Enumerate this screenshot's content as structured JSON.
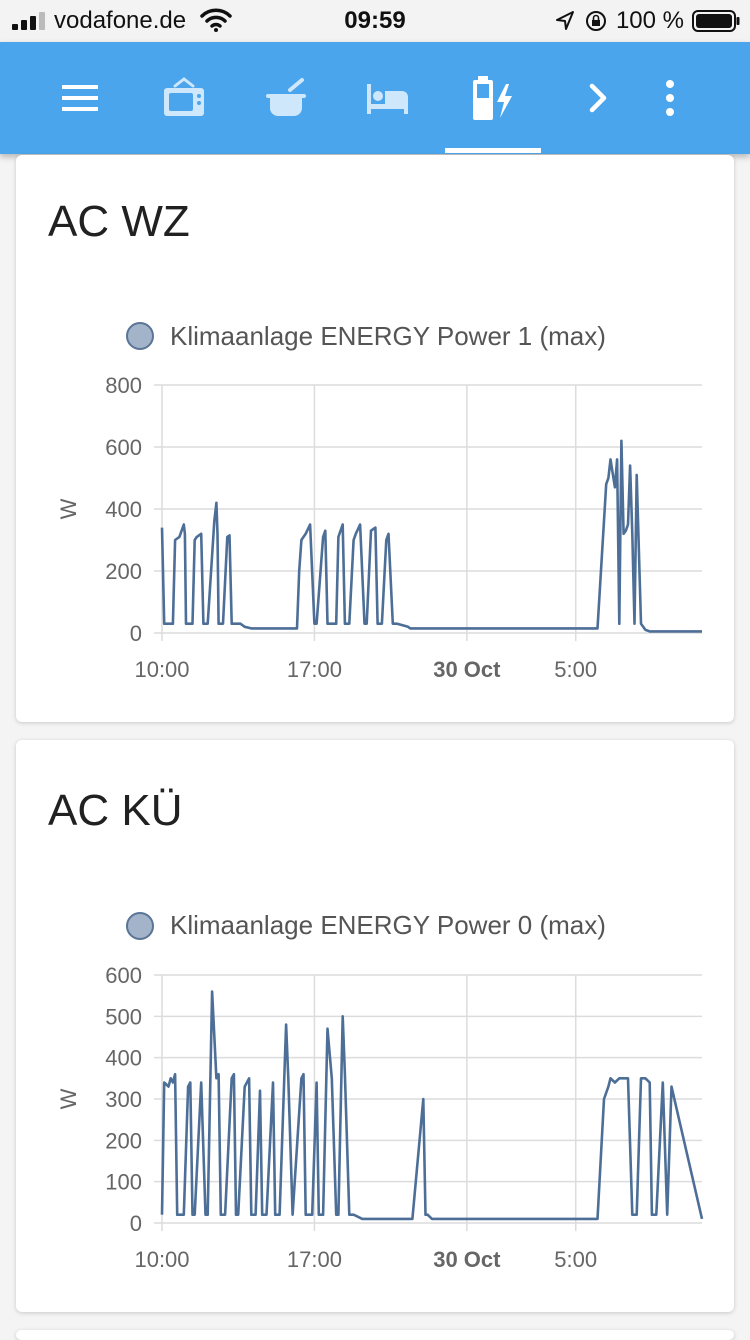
{
  "status_bar": {
    "carrier": "vodafone.de",
    "time": "09:59",
    "battery_percent": "100 %"
  },
  "toolbar": {
    "icons": [
      "menu-icon",
      "tv-icon",
      "pot-icon",
      "bed-icon",
      "battery-charging-icon",
      "chevron-right-icon",
      "more-vert-icon"
    ],
    "active_tab": "battery-charging-icon",
    "background": "#4ba5ec"
  },
  "cards": [
    {
      "title": "AC WZ",
      "legend": "Klimaanlage ENERGY Power 1 (max)"
    },
    {
      "title": "AC KÜ",
      "legend": "Klimaanlage ENERGY Power 0 (max)"
    }
  ],
  "chart_data": [
    {
      "type": "line",
      "title": "AC WZ",
      "ylabel": "W",
      "ylim": [
        0,
        800
      ],
      "yticks": [
        "800",
        "600",
        "400",
        "200",
        "0"
      ],
      "xticks": [
        "10:00",
        "17:00",
        "30 Oct",
        "5:00"
      ],
      "xtick_bold": [
        false,
        false,
        true,
        false
      ],
      "grid": true,
      "legend_position": "top",
      "series": [
        {
          "name": "Klimaanlage ENERGY Power 1 (max)",
          "color": "#4d6f97",
          "x_hours": [
            0,
            0.1,
            0.15,
            0.5,
            0.6,
            0.8,
            1.0,
            1.05,
            1.1,
            1.4,
            1.5,
            1.6,
            1.8,
            1.9,
            2.0,
            2.1,
            2.4,
            2.5,
            2.55,
            2.6,
            2.8,
            3.0,
            3.1,
            3.2,
            3.5,
            3.6,
            3.8,
            4.1,
            4.3,
            6.2,
            6.3,
            6.4,
            6.6,
            6.8,
            7.0,
            7.1,
            7.4,
            7.5,
            7.6,
            8.0,
            8.1,
            8.3,
            8.4,
            8.6,
            8.8,
            8.9,
            9.1,
            9.3,
            9.4,
            9.6,
            9.8,
            9.9,
            10.1,
            10.3,
            10.4,
            10.6,
            10.8,
            11.3,
            11.4,
            11.7,
            11.8,
            12.0,
            12.3,
            12.4,
            14.0,
            20.0,
            20.4,
            20.5,
            20.6,
            20.8,
            20.9,
            21.0,
            21.1,
            21.2,
            21.3,
            21.4,
            21.5,
            21.6,
            21.7,
            21.8,
            22.0,
            22.1,
            22.2,
            22.4,
            22.5,
            22.6,
            22.7,
            23.0,
            23.2,
            24.0,
            24.8
          ],
          "values": [
            340,
            30,
            30,
            30,
            300,
            310,
            350,
            320,
            30,
            30,
            300,
            310,
            320,
            30,
            30,
            30,
            360,
            420,
            320,
            30,
            30,
            310,
            315,
            30,
            30,
            30,
            20,
            15,
            15,
            15,
            200,
            300,
            320,
            350,
            30,
            30,
            310,
            330,
            30,
            30,
            310,
            350,
            30,
            30,
            300,
            320,
            350,
            30,
            30,
            330,
            340,
            30,
            30,
            300,
            320,
            30,
            30,
            20,
            15,
            15,
            15,
            15,
            15,
            15,
            15,
            15,
            480,
            500,
            560,
            470,
            560,
            30,
            620,
            320,
            330,
            350,
            540,
            320,
            30,
            510,
            30,
            20,
            10,
            5,
            5,
            5,
            5,
            5,
            5,
            5,
            5
          ]
        }
      ]
    },
    {
      "type": "line",
      "title": "AC KÜ",
      "ylabel": "W",
      "ylim": [
        0,
        600
      ],
      "yticks": [
        "600",
        "500",
        "400",
        "300",
        "200",
        "100",
        "0"
      ],
      "xticks": [
        "10:00",
        "17:00",
        "30 Oct",
        "5:00"
      ],
      "xtick_bold": [
        false,
        false,
        true,
        false
      ],
      "grid": true,
      "legend_position": "top",
      "series": [
        {
          "name": "Klimaanlage ENERGY Power 0 (max)",
          "color": "#4d6f97",
          "x_hours": [
            0,
            0.1,
            0.3,
            0.4,
            0.5,
            0.6,
            0.7,
            0.8,
            1.0,
            1.2,
            1.3,
            1.4,
            1.5,
            1.8,
            2.0,
            2.1,
            2.3,
            2.5,
            2.6,
            2.7,
            2.9,
            3.2,
            3.3,
            3.4,
            3.5,
            3.8,
            4.0,
            4.1,
            4.3,
            4.5,
            4.6,
            4.8,
            5.1,
            5.2,
            5.4,
            5.7,
            5.8,
            6.0,
            6.4,
            6.5,
            6.6,
            6.9,
            7.1,
            7.2,
            7.4,
            7.6,
            7.8,
            8.0,
            8.1,
            8.3,
            8.4,
            8.6,
            8.8,
            9.0,
            9.2,
            9.3,
            9.4,
            9.5,
            9.7,
            9.8,
            10.0,
            10.3,
            11.0,
            11.5,
            12.0,
            12.1,
            12.2,
            12.4,
            14.0,
            20.0,
            20.3,
            20.5,
            20.6,
            20.8,
            21.0,
            21.4,
            21.6,
            21.8,
            22.0,
            22.2,
            22.4,
            22.5,
            22.7,
            23.0,
            23.2,
            23.4,
            24.8
          ],
          "values": [
            20,
            340,
            330,
            350,
            340,
            360,
            20,
            20,
            20,
            330,
            340,
            20,
            20,
            340,
            20,
            20,
            560,
            350,
            360,
            20,
            20,
            350,
            360,
            20,
            20,
            330,
            350,
            20,
            20,
            320,
            20,
            20,
            340,
            20,
            20,
            480,
            350,
            20,
            350,
            360,
            20,
            20,
            340,
            20,
            20,
            470,
            350,
            20,
            20,
            500,
            360,
            20,
            20,
            15,
            10,
            10,
            10,
            10,
            10,
            10,
            10,
            10,
            10,
            10,
            300,
            20,
            20,
            10,
            10,
            10,
            300,
            330,
            350,
            340,
            350,
            350,
            20,
            20,
            350,
            350,
            340,
            20,
            20,
            340,
            20,
            330,
            10
          ]
        }
      ]
    }
  ]
}
